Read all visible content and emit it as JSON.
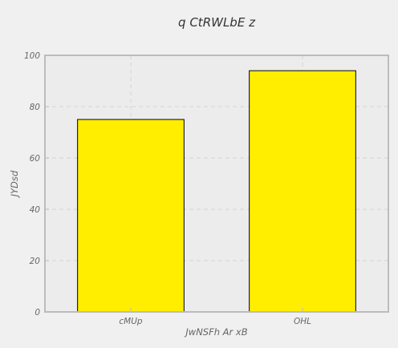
{
  "chart_data": {
    "type": "bar",
    "title": "q CtRWLbE z",
    "xlabel": "JwNSFh  Ar xB",
    "ylabel": "JYDsd",
    "categories": [
      "cMUp",
      "OHL"
    ],
    "values": [
      75,
      94
    ],
    "ylim": [
      0,
      100
    ],
    "yticks": [
      0,
      20,
      40,
      60,
      80,
      100
    ],
    "grid": true,
    "colors": {
      "bar": "#ffee00",
      "bar_edge": "#000000",
      "plot_background": "#ececec",
      "figure_background": "#f0f0f0",
      "axes_edge": "#bcbcbc",
      "grid": "#d8d8d8"
    }
  }
}
